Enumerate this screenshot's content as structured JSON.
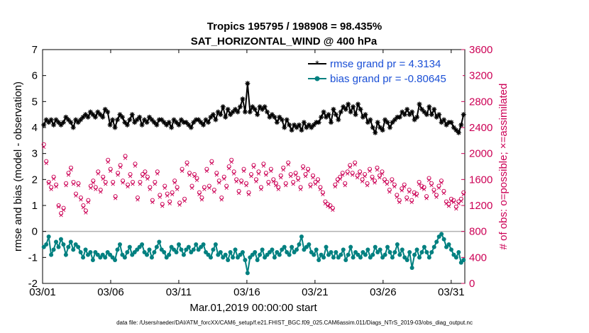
{
  "chart_data": {
    "type": "line",
    "title": "Tropics 195795 / 198908 = 98.435%",
    "subtitle": "SAT_HORIZONTAL_WIND @ 400 hPa",
    "xlabel": "Mar.01,2019 00:00:00 start",
    "ylabel": "rmse and bias (model - observation)",
    "ylabel_right": "# of obs: o=possible; ×=assimilated",
    "xlim": [
      0,
      31
    ],
    "ylim": [
      -2,
      7
    ],
    "ylim_right": [
      0,
      3600
    ],
    "x_tick_labels": [
      "03/01",
      "03/06",
      "03/11",
      "03/16",
      "03/21",
      "03/26",
      "03/31"
    ],
    "x_tick_values": [
      0,
      5,
      10,
      15,
      20,
      25,
      30
    ],
    "y_tick_values": [
      -2,
      -1,
      0,
      1,
      2,
      3,
      4,
      5,
      6,
      7
    ],
    "y_tick_labels": [
      "-2",
      "-1",
      "0",
      "1",
      "2",
      "3",
      "4",
      "5",
      "6",
      "7"
    ],
    "y_right_tick_values": [
      0,
      400,
      800,
      1200,
      1600,
      2000,
      2400,
      2800,
      3200,
      3600
    ],
    "y_right_tick_labels": [
      "0",
      "400",
      "800",
      "1200",
      "1600",
      "2000",
      "2400",
      "2800",
      "3200",
      "3600"
    ],
    "zero_line": 0,
    "legend_position": "top-right",
    "series": [
      {
        "name": "rmse grand pr = 4.3134",
        "color": "#000000",
        "marker": "star",
        "axis": "left",
        "values": [
          4.1,
          4.3,
          4.2,
          4.3,
          4.1,
          4.3,
          4.2,
          4.1,
          4.2,
          4.4,
          4.3,
          4.2,
          4.0,
          4.3,
          4.2,
          4.3,
          4.4,
          4.5,
          4.4,
          4.6,
          4.5,
          4.4,
          4.6,
          4.5,
          4.4,
          4.7,
          4.6,
          4.1,
          4.3,
          4.0,
          4.3,
          4.5,
          4.4,
          4.2,
          4.1,
          4.3,
          4.5,
          4.2,
          4.3,
          4.4,
          4.1,
          4.3,
          4.2,
          4.4,
          4.3,
          4.2,
          4.1,
          4.3,
          4.3,
          4.2,
          4.1,
          4.2,
          4.0,
          4.3,
          4.2,
          4.1,
          4.3,
          4.2,
          4.2,
          4.1,
          4.0,
          4.2,
          4.3,
          4.3,
          4.2,
          4.1,
          4.3,
          4.2,
          4.4,
          4.5,
          4.3,
          4.6,
          4.5,
          4.8,
          4.4,
          4.7,
          4.5,
          4.6,
          4.7,
          4.6,
          4.8,
          5.1,
          4.6,
          5.7,
          4.6,
          4.8,
          4.7,
          4.5,
          4.8,
          4.7,
          4.8,
          4.6,
          4.4,
          4.5,
          4.4,
          4.2,
          4.4,
          4.3,
          4.0,
          4.3,
          4.1,
          3.9,
          4.1,
          4.0,
          4.1,
          3.9,
          4.2,
          4.0,
          4.1,
          4.0,
          4.1,
          4.2,
          4.2,
          4.4,
          4.6,
          4.4,
          4.5,
          4.2,
          4.7,
          4.5,
          4.3,
          4.6,
          4.8,
          4.7,
          4.9,
          4.6,
          4.8,
          4.5,
          4.9,
          4.7,
          4.4,
          4.5,
          4.2,
          4.3,
          4.0,
          3.8,
          4.2,
          4.0,
          3.9,
          4.3,
          4.2,
          4.0,
          4.2,
          4.3,
          4.4,
          4.4,
          4.6,
          4.5,
          4.7,
          4.5,
          4.6,
          4.3,
          4.4,
          4.9,
          4.7,
          4.6,
          4.5,
          4.8,
          4.5,
          4.7,
          4.4,
          4.5,
          4.2,
          4.3,
          4.1,
          4.2,
          4.2,
          4.0,
          3.9,
          3.8,
          4.1,
          4.5
        ]
      },
      {
        "name": "bias grand pr = -0.80645",
        "color": "#008080",
        "marker": "circle",
        "axis": "left",
        "values": [
          -0.6,
          -0.5,
          -0.2,
          -0.9,
          -0.7,
          -0.4,
          -0.6,
          -0.3,
          -0.5,
          -0.9,
          -0.6,
          -0.4,
          -0.7,
          -0.5,
          -0.6,
          -0.8,
          -1.0,
          -0.7,
          -0.9,
          -0.8,
          -1.1,
          -0.8,
          -0.9,
          -1.0,
          -0.9,
          -1.0,
          -0.8,
          -0.9,
          -1.0,
          -1.1,
          -0.7,
          -0.5,
          -0.9,
          -1.0,
          -0.8,
          -0.6,
          -0.9,
          -0.8,
          -0.7,
          -0.6,
          -0.5,
          -0.8,
          -0.9,
          -0.7,
          -1.0,
          -0.8,
          -0.6,
          -0.4,
          -0.7,
          -0.8,
          -1.0,
          -0.9,
          -0.6,
          -0.7,
          -0.8,
          -0.5,
          -0.7,
          -0.9,
          -0.7,
          -0.6,
          -0.8,
          -0.7,
          -0.5,
          -0.7,
          -0.6,
          -0.5,
          -0.8,
          -0.9,
          -1.0,
          -0.7,
          -0.5,
          -0.9,
          -0.8,
          -1.0,
          -0.9,
          -1.1,
          -0.8,
          -1.0,
          -0.7,
          -1.0,
          -0.9,
          -0.8,
          -1.1,
          -1.6,
          -1.0,
          -0.9,
          -0.8,
          -1.1,
          -0.9,
          -0.7,
          -1.0,
          -0.9,
          -0.8,
          -0.7,
          -1.0,
          -0.8,
          -0.9,
          -0.7,
          -0.6,
          -0.8,
          -0.9,
          -0.6,
          -0.8,
          -0.7,
          -0.5,
          -0.2,
          -0.7,
          -0.6,
          -0.5,
          -0.8,
          -0.9,
          -0.7,
          -1.1,
          -0.9,
          -1.0,
          -0.6,
          -0.9,
          -0.8,
          -1.0,
          -0.8,
          -1.0,
          -0.9,
          -0.7,
          -1.1,
          -0.9,
          -0.6,
          -1.0,
          -0.8,
          -0.9,
          -1.0,
          -0.8,
          -0.9,
          -0.7,
          -1.0,
          -0.9,
          -0.6,
          -0.8,
          -0.7,
          -1.0,
          -0.9,
          -0.6,
          -0.8,
          -1.0,
          -0.8,
          -0.5,
          -0.9,
          -0.7,
          -1.0,
          -1.1,
          -0.8,
          -1.4,
          -0.9,
          -0.7,
          -1.0,
          -0.8,
          -0.6,
          -0.8,
          -1.0,
          -0.8,
          -0.6,
          -0.4,
          -0.2,
          -0.1,
          -0.3,
          -0.6,
          -0.5,
          -0.7,
          -0.9,
          -1.0,
          -0.8,
          -1.2,
          -1.1
        ]
      },
      {
        "name": "possible",
        "color": "#cc0055",
        "marker": "o",
        "axis": "right",
        "values": [
          2140,
          1880,
          1560,
          1480,
          1640,
          1520,
          1200,
          1080,
          1160,
          1540,
          1700,
          1780,
          1560,
          1380,
          1540,
          1320,
          1200,
          1120,
          1280,
          1500,
          1580,
          1480,
          1720,
          1440,
          1640,
          1560,
          1900,
          1760,
          1560,
          1340,
          1700,
          1820,
          1580,
          1960,
          1520,
          1680,
          1560,
          1840,
          1320,
          1560,
          1680,
          1720,
          1640,
          1480,
          1280,
          1560,
          1720,
          1360,
          1220,
          1500,
          1380,
          1260,
          1400,
          1580,
          1480,
          1240,
          1760,
          1300,
          1860,
          1700,
          1500,
          1680,
          1620,
          1400,
          1320,
          1480,
          1760,
          1500,
          1880,
          1440,
          1700,
          1580,
          1320,
          1640,
          1500,
          1800,
          1900,
          1720,
          1600,
          1420,
          1580,
          1760,
          1540,
          1400,
          1680,
          1820,
          1600,
          1720,
          1480,
          1840,
          1700,
          1560,
          1760,
          1600,
          1540,
          1480,
          1660,
          1780,
          1540,
          1860,
          1680,
          1560,
          1700,
          1620,
          1480,
          1800,
          1680,
          1760,
          1520,
          1660,
          1560,
          1600,
          1480,
          1400,
          1260,
          1220,
          1200,
          1160,
          1520,
          1600,
          1640,
          1700,
          1540,
          1720,
          1820,
          1700,
          1860,
          1660,
          1720,
          1600,
          1680,
          1540,
          1760,
          1640,
          1580,
          1780,
          1660,
          1720,
          1600,
          1560,
          1440,
          1600,
          1520,
          1360,
          1280,
          1460,
          1520,
          1320,
          1440,
          1280,
          1400,
          1380,
          1560,
          1500,
          1480,
          1340,
          1620,
          1540,
          1440,
          1360,
          1500,
          1580,
          1420,
          1260,
          1220,
          1300,
          1280,
          1180,
          1260,
          1300,
          1400
        ]
      },
      {
        "name": "assimilated",
        "color": "#cc0055",
        "marker": "x",
        "axis": "right",
        "values": [
          2100,
          1850,
          1540,
          1450,
          1610,
          1490,
          1180,
          1050,
          1130,
          1510,
          1670,
          1750,
          1530,
          1350,
          1510,
          1290,
          1170,
          1090,
          1250,
          1470,
          1550,
          1450,
          1690,
          1410,
          1610,
          1530,
          1870,
          1730,
          1530,
          1310,
          1670,
          1790,
          1550,
          1930,
          1490,
          1650,
          1530,
          1810,
          1290,
          1530,
          1650,
          1690,
          1610,
          1450,
          1250,
          1530,
          1690,
          1330,
          1190,
          1470,
          1350,
          1230,
          1370,
          1550,
          1450,
          1210,
          1730,
          1270,
          1830,
          1670,
          1470,
          1650,
          1590,
          1370,
          1290,
          1450,
          1730,
          1470,
          1850,
          1410,
          1670,
          1550,
          1290,
          1610,
          1470,
          1770,
          1870,
          1690,
          1570,
          1390,
          1550,
          1730,
          1510,
          1370,
          1650,
          1790,
          1570,
          1690,
          1450,
          1810,
          1670,
          1530,
          1730,
          1570,
          1510,
          1450,
          1630,
          1750,
          1510,
          1830,
          1650,
          1530,
          1670,
          1590,
          1450,
          1770,
          1650,
          1730,
          1490,
          1630,
          1530,
          1570,
          1450,
          1370,
          1230,
          1190,
          1170,
          1130,
          1490,
          1570,
          1610,
          1670,
          1510,
          1690,
          1790,
          1670,
          1830,
          1630,
          1690,
          1570,
          1650,
          1510,
          1730,
          1610,
          1550,
          1750,
          1630,
          1690,
          1570,
          1530,
          1410,
          1570,
          1490,
          1330,
          1250,
          1430,
          1490,
          1290,
          1410,
          1250,
          1370,
          1350,
          1530,
          1470,
          1450,
          1310,
          1590,
          1510,
          1410,
          1330,
          1470,
          1550,
          1390,
          1230,
          1190,
          1270,
          1250,
          1150,
          1230,
          1270,
          1370
        ]
      }
    ],
    "footer": "data file: /Users/raeder/DAI/ATM_forcXX/CAM6_setup/f.e21.FHIST_BGC.f09_025.CAM6assim.011/Diags_NTrS_2019-03/obs_diag_output.nc"
  }
}
